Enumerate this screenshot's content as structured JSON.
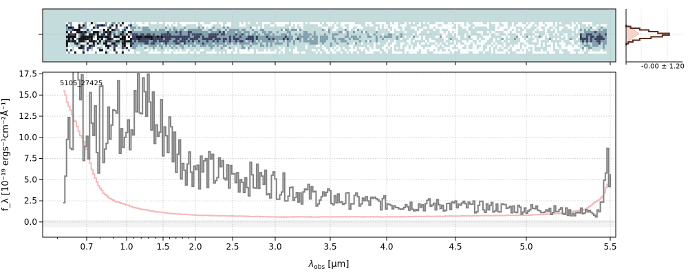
{
  "chart_data": [
    {
      "type": "heatmap",
      "panel": "2D spectrum",
      "colormap": [
        "#ffffff",
        "#c5dcdc",
        "#7f9fac",
        "#3a3f5f",
        "#111111"
      ],
      "background_color": "#c5dcdc",
      "x_extent_um": [
        0.62,
        5.5
      ]
    },
    {
      "type": "line",
      "panel": "1D spectrum",
      "label": "5105_27425",
      "xlabel": "$\\lambda_{\\rm obs}$ [$\\mu$m]",
      "xlabel_main": "λ",
      "xlabel_sub": "obs",
      "xlabel_unit": " [μm]",
      "ylabel": "f_λ [10⁻¹⁹ ergs⁻¹cm⁻²Å⁻¹]",
      "x_ticks": [
        "0.7",
        "1.0",
        "1.5",
        "2.0",
        "2.5",
        "3.0",
        "3.5",
        "4.0",
        "4.5",
        "5.0",
        "5.5"
      ],
      "x_tick_values": [
        0.7,
        1.0,
        1.5,
        2.0,
        2.5,
        3.0,
        3.5,
        4.0,
        4.5,
        5.0,
        5.5
      ],
      "y_ticks": [
        "0.0",
        "2.5",
        "5.0",
        "7.5",
        "10.0",
        "12.5",
        "15.0",
        "17.5"
      ],
      "y_tick_values": [
        0.0,
        2.5,
        5.0,
        7.5,
        10.0,
        12.5,
        15.0,
        17.5
      ],
      "ylim": [
        -1.8,
        17.7
      ],
      "xlim": [
        0.55,
        5.52
      ],
      "x_scale": "compressed (prism pixel spacing)",
      "grid": true,
      "series": [
        {
          "color": "#808080",
          "x": [
            0.62,
            0.65,
            0.68,
            0.7,
            0.72,
            0.75,
            0.78,
            0.8,
            0.83,
            0.86,
            0.9,
            0.95,
            1.0,
            1.05,
            1.1,
            1.15,
            1.2,
            1.3,
            1.4,
            1.5,
            1.6,
            1.7,
            1.8,
            1.9,
            2.0,
            2.2,
            2.4,
            2.6,
            2.8,
            3.0,
            3.2,
            3.4,
            3.6,
            3.8,
            4.0,
            4.2,
            4.4,
            4.6,
            4.8,
            5.0,
            5.1,
            5.2,
            5.3,
            5.35,
            5.4,
            5.45,
            5.48,
            5.5
          ],
          "y": [
            2.4,
            15.0,
            13.5,
            9.0,
            14.0,
            12.0,
            6.0,
            15.5,
            10.0,
            16.0,
            13.0,
            12.0,
            15.0,
            11.5,
            17.0,
            14.0,
            12.5,
            15.0,
            10.5,
            11.5,
            10.0,
            8.5,
            7.5,
            7.0,
            6.5,
            6.0,
            5.5,
            5.2,
            5.0,
            4.5,
            3.5,
            3.0,
            2.6,
            2.4,
            2.2,
            2.0,
            2.0,
            1.8,
            1.7,
            1.5,
            1.6,
            1.3,
            1.0,
            1.5,
            0.6,
            2.0,
            6.5,
            4.7
          ]
        },
        {
          "color": "#f4b8b8",
          "x": [
            0.62,
            0.65,
            0.68,
            0.7,
            0.72,
            0.75,
            0.78,
            0.8,
            0.85,
            0.9,
            1.0,
            1.1,
            1.2,
            1.4,
            1.6,
            1.8,
            2.0,
            2.5,
            3.0,
            3.5,
            4.0,
            4.5,
            5.0,
            5.2,
            5.35,
            5.45,
            5.5
          ],
          "y": [
            15.5,
            12.5,
            10.0,
            8.5,
            7.0,
            5.5,
            4.5,
            3.8,
            3.0,
            2.5,
            2.0,
            1.7,
            1.5,
            1.2,
            1.0,
            0.9,
            0.8,
            0.7,
            0.6,
            0.6,
            0.6,
            0.7,
            0.8,
            1.0,
            1.5,
            3.0,
            5.5
          ]
        }
      ]
    },
    {
      "type": "line",
      "panel": "spatial profile",
      "annotation": "-0.00 ± 1.20",
      "colors": {
        "profile": "#5c2a1a",
        "fill": "#f9d4cc"
      },
      "y_rows": [
        0,
        1,
        2,
        3,
        4,
        5,
        6,
        7,
        8,
        9,
        10,
        11,
        12
      ],
      "profile_values": [
        0.0,
        0.1,
        0.3,
        0.5,
        0.7,
        0.95,
        0.8,
        0.55,
        0.3,
        0.15,
        0.05,
        0.0,
        0.0
      ]
    }
  ]
}
